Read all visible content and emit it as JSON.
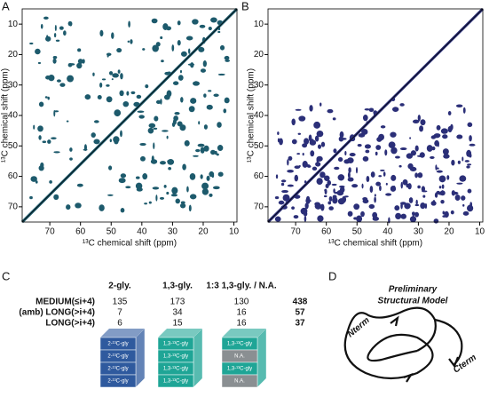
{
  "panels": {
    "a": "A",
    "b": "B",
    "c": "C",
    "d": "D"
  },
  "spectra": [
    {
      "xlabel": "¹³C chemical shift (ppm)",
      "ylabel": "¹³C chemical shift (ppm)",
      "xlim": [
        79,
        9
      ],
      "ylim": [
        5,
        75
      ],
      "xticks": [
        70,
        60,
        50,
        40,
        30,
        20,
        10
      ],
      "yticks": [
        10,
        20,
        30,
        40,
        50,
        60,
        70
      ],
      "color": "#1d5a6c"
    },
    {
      "xlabel": "¹³C chemical shift (ppm)",
      "ylabel": "¹³C chemical shift (ppm)",
      "xlim": [
        79,
        9
      ],
      "ylim": [
        5,
        75
      ],
      "xticks": [
        70,
        60,
        50,
        40,
        30,
        20,
        10
      ],
      "yticks": [
        10,
        20,
        30,
        40,
        50,
        60,
        70
      ],
      "color": "#2b2f78"
    }
  ],
  "table": {
    "columns": [
      "2-gly.",
      "1,3-gly.",
      "1:3 1,3-gly. / N.A."
    ],
    "rows": [
      {
        "label": "MEDIUM(≤i+4)",
        "values": [
          135,
          173,
          130
        ],
        "total": 438
      },
      {
        "label": "(amb) LONG(>i+4)",
        "values": [
          7,
          34,
          16
        ],
        "total": 57
      },
      {
        "label": "LONG(>i+4)",
        "values": [
          6,
          15,
          16
        ],
        "total": 37
      }
    ]
  },
  "blocks": [
    {
      "color": "#2f5a9e",
      "layers": [
        "2-¹³C-gly",
        "2-¹³C-gly",
        "2-¹³C-gly",
        "2-¹³C-gly"
      ]
    },
    {
      "color": "#1fa596",
      "layers": [
        "1,3-¹³C-gly",
        "1,3-¹³C-gly",
        "1,3-¹³C-gly",
        "1,3-¹³C-gly"
      ]
    },
    {
      "color": "#1fa596",
      "layers": [
        "1,3-¹³C-gly",
        "N.A.",
        "1,3-¹³C-gly",
        "N.A."
      ]
    }
  ],
  "model": {
    "title": [
      "Preliminary",
      "Structural Model"
    ],
    "nterm": "Nterm",
    "cterm": "Cterm"
  }
}
